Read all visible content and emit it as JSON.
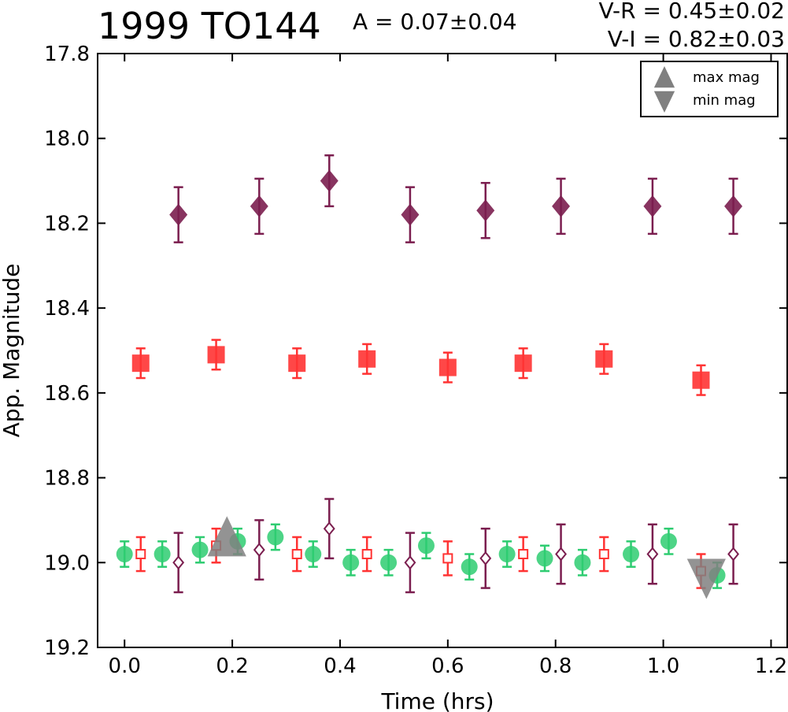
{
  "header": {
    "title": "1999 TO144",
    "amplitude": "A  = 0.07±0.04",
    "v_r": "V-R = 0.45±0.02",
    "v_i": "V-I  = 0.82±0.03"
  },
  "chart_data": {
    "type": "scatter",
    "xlabel": "Time (hrs)",
    "ylabel": "App. Magnitude",
    "xlim": [
      -0.05,
      1.23
    ],
    "ylim": [
      19.2,
      17.8
    ],
    "y_inverted": true,
    "xticks": [
      "0.0",
      "0.2",
      "0.4",
      "0.6",
      "0.8",
      "1.0",
      "1.2"
    ],
    "xtick_values": [
      0.0,
      0.2,
      0.4,
      0.6,
      0.8,
      1.0,
      1.2
    ],
    "yticks": [
      "17.8",
      "18.0",
      "18.2",
      "18.4",
      "18.6",
      "18.8",
      "19.0",
      "19.2"
    ],
    "ytick_values": [
      17.8,
      18.0,
      18.2,
      18.4,
      18.6,
      18.8,
      19.0,
      19.2
    ],
    "grid": false,
    "legend_position": "top-right",
    "legend": [
      {
        "label": "max mag",
        "marker": "triangle-up",
        "color": "#808080"
      },
      {
        "label": "min mag",
        "marker": "triangle-down",
        "color": "#808080"
      }
    ],
    "series": [
      {
        "marker": "circle",
        "color": "#2ecc71",
        "filled": true,
        "x": [
          0.0,
          0.07,
          0.14,
          0.21,
          0.28,
          0.35,
          0.42,
          0.49,
          0.56,
          0.64,
          0.71,
          0.78,
          0.85,
          0.94,
          1.01,
          1.1
        ],
        "y": [
          18.98,
          18.98,
          18.97,
          18.95,
          18.94,
          18.98,
          19.0,
          19.0,
          18.96,
          19.01,
          18.98,
          18.99,
          19.0,
          18.98,
          18.95,
          19.03
        ],
        "err": [
          0.03,
          0.03,
          0.03,
          0.03,
          0.03,
          0.03,
          0.03,
          0.03,
          0.03,
          0.03,
          0.03,
          0.03,
          0.03,
          0.03,
          0.03,
          0.03
        ]
      },
      {
        "marker": "square",
        "color": "#ff3333",
        "filled": true,
        "x": [
          0.03,
          0.17,
          0.32,
          0.45,
          0.6,
          0.74,
          0.89,
          1.07
        ],
        "y": [
          18.53,
          18.51,
          18.53,
          18.52,
          18.54,
          18.53,
          18.52,
          18.57
        ],
        "err": [
          0.035,
          0.035,
          0.035,
          0.035,
          0.035,
          0.035,
          0.035,
          0.035
        ]
      },
      {
        "marker": "diamond",
        "color": "#7b1e4f",
        "filled": true,
        "x": [
          0.1,
          0.25,
          0.38,
          0.53,
          0.67,
          0.81,
          0.98,
          1.13
        ],
        "y": [
          18.18,
          18.16,
          18.1,
          18.18,
          18.17,
          18.16,
          18.16,
          18.16
        ],
        "err": [
          0.065,
          0.065,
          0.06,
          0.065,
          0.065,
          0.065,
          0.065,
          0.065
        ]
      },
      {
        "marker": "square",
        "color": "#ff3333",
        "filled": false,
        "x": [
          0.03,
          0.17,
          0.32,
          0.45,
          0.6,
          0.74,
          0.89,
          1.07
        ],
        "y": [
          18.98,
          18.96,
          18.98,
          18.98,
          18.99,
          18.98,
          18.98,
          19.02
        ],
        "err": [
          0.04,
          0.04,
          0.04,
          0.04,
          0.04,
          0.04,
          0.04,
          0.04
        ]
      },
      {
        "marker": "diamond",
        "color": "#7b1e4f",
        "filled": false,
        "x": [
          0.1,
          0.25,
          0.38,
          0.53,
          0.67,
          0.81,
          0.98,
          1.13
        ],
        "y": [
          19.0,
          18.97,
          18.92,
          19.0,
          18.99,
          18.98,
          18.98,
          18.98
        ],
        "err": [
          0.07,
          0.07,
          0.07,
          0.07,
          0.07,
          0.07,
          0.07,
          0.07
        ]
      }
    ],
    "markers": [
      {
        "label": "max mag",
        "marker": "triangle-up",
        "color": "#808080",
        "x": 0.19,
        "y": 18.95
      },
      {
        "label": "min mag",
        "marker": "triangle-down",
        "color": "#808080",
        "x": 1.08,
        "y": 19.03
      }
    ]
  }
}
